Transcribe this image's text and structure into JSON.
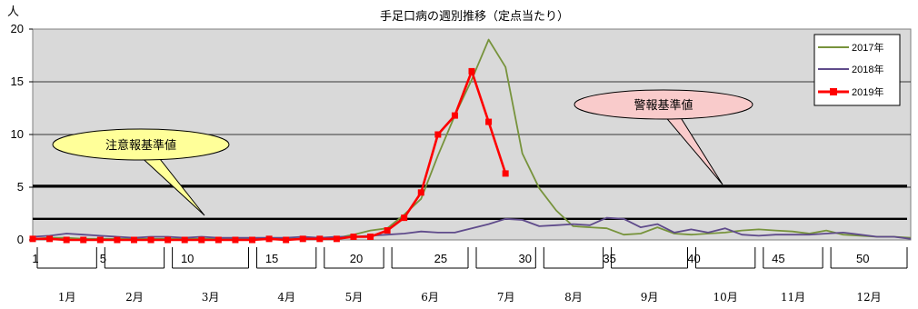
{
  "chart_data": {
    "type": "line",
    "title": "手足口病の週別推移（定点当たり）",
    "y_unit_label": "人",
    "ylim": [
      0,
      20
    ],
    "y_ticks": [
      0,
      5,
      10,
      15,
      20
    ],
    "xlim": [
      1,
      53
    ],
    "x_ticks": [
      1,
      5,
      10,
      15,
      20,
      25,
      30,
      35,
      40,
      45,
      50
    ],
    "months": [
      {
        "label": "1月",
        "from": 1,
        "to": 5
      },
      {
        "label": "2月",
        "from": 5,
        "to": 9
      },
      {
        "label": "3月",
        "from": 9,
        "to": 14
      },
      {
        "label": "4月",
        "from": 14,
        "to": 18
      },
      {
        "label": "5月",
        "from": 18,
        "to": 22
      },
      {
        "label": "6月",
        "from": 22,
        "to": 27
      },
      {
        "label": "7月",
        "from": 27,
        "to": 31
      },
      {
        "label": "8月",
        "from": 31,
        "to": 35
      },
      {
        "label": "9月",
        "from": 35,
        "to": 40
      },
      {
        "label": "10月",
        "from": 40,
        "to": 44
      },
      {
        "label": "11月",
        "from": 44,
        "to": 48
      },
      {
        "label": "12月",
        "from": 48,
        "to": 53
      }
    ],
    "grid": true,
    "legend_position": "top-right",
    "series": [
      {
        "name": "2017年",
        "color": "#77933c",
        "marker": "none",
        "values": [
          0.1,
          0.2,
          0.2,
          0.1,
          0.1,
          0.1,
          0.1,
          0.1,
          0.1,
          0.1,
          0.1,
          0.1,
          0.1,
          0.1,
          0.1,
          0.1,
          0.1,
          0.1,
          0.2,
          0.5,
          0.9,
          1.1,
          2.4,
          3.9,
          8.0,
          11.8,
          15.2,
          19.0,
          16.4,
          8.2,
          4.9,
          2.8,
          1.3,
          1.2,
          1.1,
          0.5,
          0.6,
          1.2,
          0.6,
          0.5,
          0.6,
          0.7,
          0.9,
          1.0,
          0.9,
          0.8,
          0.6,
          0.9,
          0.5,
          0.4,
          0.3,
          0.3,
          0.2
        ]
      },
      {
        "name": "2018年",
        "color": "#5f4b8b",
        "marker": "none",
        "values": [
          0.3,
          0.4,
          0.6,
          0.5,
          0.4,
          0.3,
          0.2,
          0.3,
          0.3,
          0.2,
          0.3,
          0.2,
          0.2,
          0.2,
          0.2,
          0.2,
          0.3,
          0.2,
          0.3,
          0.3,
          0.4,
          0.5,
          0.6,
          0.8,
          0.7,
          0.7,
          1.1,
          1.5,
          2.0,
          1.9,
          1.3,
          1.4,
          1.5,
          1.4,
          2.1,
          2.0,
          1.2,
          1.5,
          0.7,
          1.0,
          0.7,
          1.1,
          0.5,
          0.4,
          0.5,
          0.5,
          0.5,
          0.6,
          0.7,
          0.5,
          0.3,
          0.3,
          0.1
        ]
      },
      {
        "name": "2019年",
        "color": "#ff0000",
        "marker": "square",
        "values": [
          0.1,
          0.1,
          0.0,
          0.0,
          0.0,
          0.0,
          0.0,
          0.0,
          0.0,
          0.0,
          0.0,
          0.0,
          0.0,
          0.0,
          0.1,
          0.0,
          0.1,
          0.1,
          0.1,
          0.3,
          0.3,
          0.9,
          2.1,
          4.5,
          10.0,
          11.8,
          16.0,
          11.2,
          6.3
        ]
      }
    ],
    "reference_lines": [
      {
        "name": "警報基準値",
        "value": 5.1
      },
      {
        "name": "注意報基準値",
        "value": 2.0
      }
    ]
  }
}
